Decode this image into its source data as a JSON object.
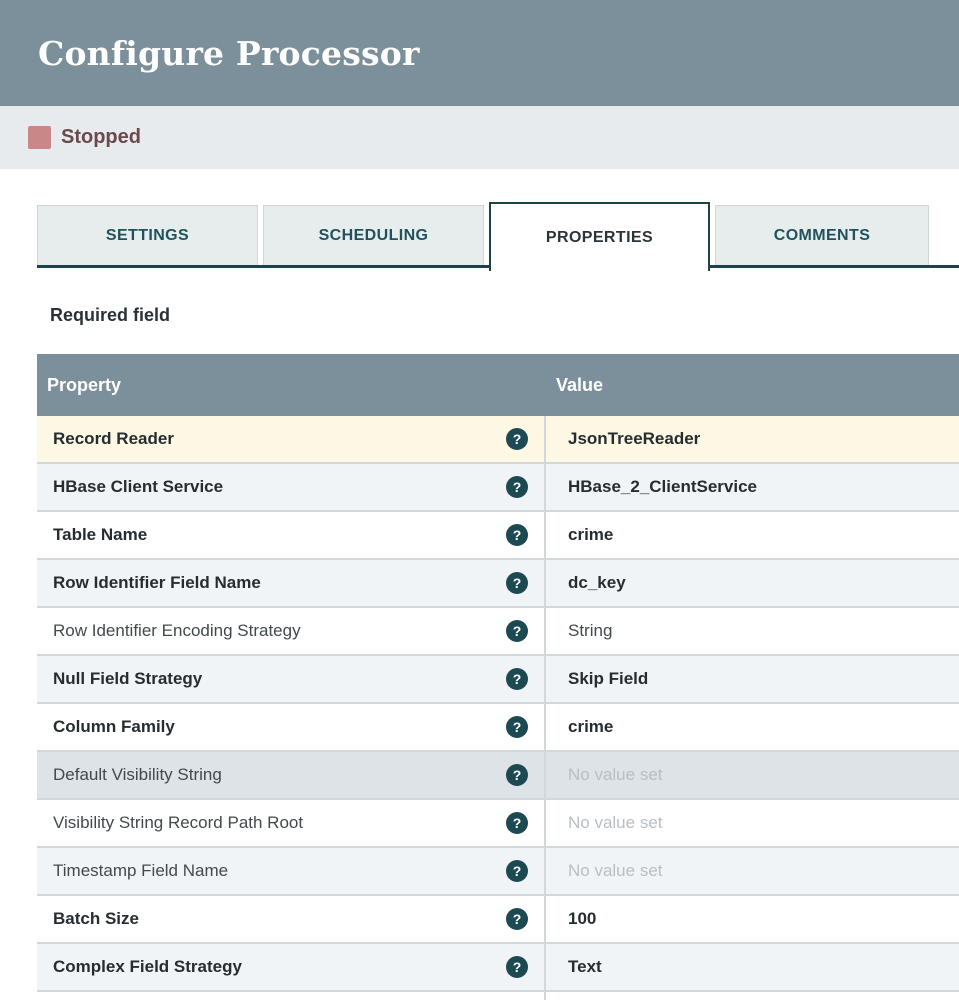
{
  "dialog": {
    "title": "Configure Processor",
    "status": {
      "label": "Stopped",
      "swatch_color": "#ca8787",
      "text_color": "#6a4a4b"
    }
  },
  "tabs": {
    "items": [
      {
        "label": "SETTINGS",
        "active": false
      },
      {
        "label": "SCHEDULING",
        "active": false
      },
      {
        "label": "PROPERTIES",
        "active": true
      },
      {
        "label": "COMMENTS",
        "active": false
      }
    ]
  },
  "properties_panel": {
    "required_field_label": "Required field",
    "table": {
      "columns": [
        "Property",
        "Value"
      ],
      "help_icon_glyph": "?",
      "empty_value_text": "No value set",
      "rows": [
        {
          "property": "Record Reader",
          "value": "JsonTreeReader",
          "required": true,
          "empty": false,
          "state": "selected"
        },
        {
          "property": "HBase Client Service",
          "value": "HBase_2_ClientService",
          "required": true,
          "empty": false,
          "state": "alt"
        },
        {
          "property": "Table Name",
          "value": "crime",
          "required": true,
          "empty": false,
          "state": ""
        },
        {
          "property": "Row Identifier Field Name",
          "value": "dc_key",
          "required": true,
          "empty": false,
          "state": "alt"
        },
        {
          "property": "Row Identifier Encoding Strategy",
          "value": "String",
          "required": false,
          "empty": false,
          "state": ""
        },
        {
          "property": "Null Field Strategy",
          "value": "Skip Field",
          "required": true,
          "empty": false,
          "state": "alt"
        },
        {
          "property": "Column Family",
          "value": "crime",
          "required": true,
          "empty": false,
          "state": ""
        },
        {
          "property": "Default Visibility String",
          "value": "No value set",
          "required": false,
          "empty": true,
          "state": "hover"
        },
        {
          "property": "Visibility String Record Path Root",
          "value": "No value set",
          "required": false,
          "empty": true,
          "state": ""
        },
        {
          "property": "Timestamp Field Name",
          "value": "No value set",
          "required": false,
          "empty": true,
          "state": "alt"
        },
        {
          "property": "Batch Size",
          "value": "100",
          "required": true,
          "empty": false,
          "state": ""
        },
        {
          "property": "Complex Field Strategy",
          "value": "Text",
          "required": true,
          "empty": false,
          "state": "alt"
        }
      ]
    }
  },
  "colors": {
    "header_background": "#7b909b",
    "status_bar_background": "#e7ebee",
    "tab_inactive_background": "#e7ecec",
    "tab_text_teal": "#1f525b",
    "tab_border_dark": "#1d4348",
    "table_header_background": "#7b909b",
    "row_selected_background": "#fdf8e4",
    "row_alt_background": "#f1f4f6",
    "row_hover_background": "#dee3e7",
    "row_border": "#d1d8dc",
    "help_icon_background": "#1d4a52",
    "required_text": "#262d31",
    "regular_text": "#42494d",
    "empty_value_text_color": "#b7bfc5"
  }
}
